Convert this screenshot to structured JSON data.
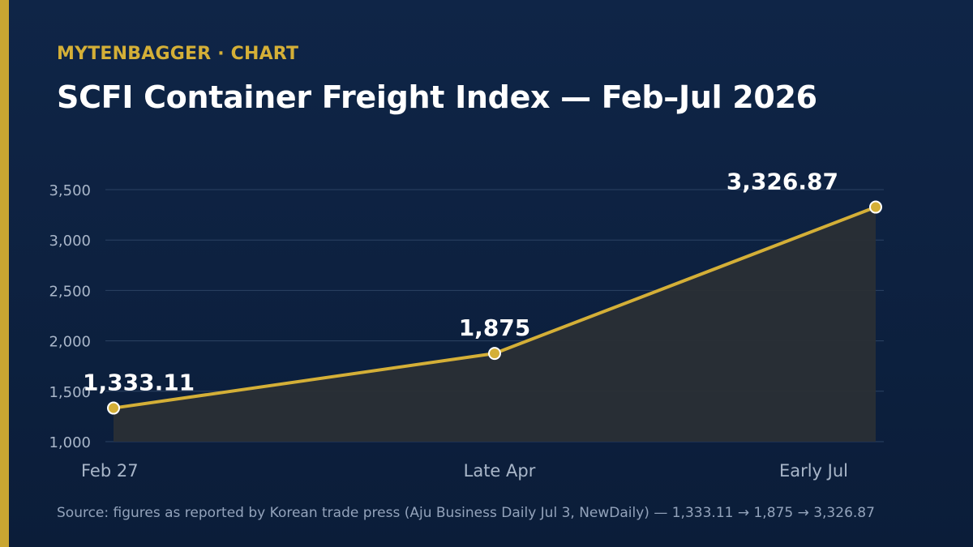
{
  "header": {
    "eyebrow": "MYTENBAGGER · CHART",
    "title": "SCFI Container Freight Index — Feb–Jul 2026"
  },
  "footer": {
    "source": "Source: figures as reported by Korean trade press (Aju Business Daily Jul 3, NewDaily) — 1,333.11 → 1,875 → 3,326.87"
  },
  "colors": {
    "background": "#0f2547",
    "accent": "#d4af37",
    "line": "#d4af37",
    "area": "#2a2f35",
    "grid": "#2c4263",
    "tick_text": "#a9b6c9",
    "label_text": "#ffffff"
  },
  "chart_data": {
    "type": "area",
    "title": "SCFI Container Freight Index — Feb–Jul 2026",
    "xlabel": "",
    "ylabel": "",
    "categories": [
      "Feb 27",
      "Late Apr",
      "Early Jul"
    ],
    "x_positions": [
      0,
      0.5,
      1
    ],
    "series": [
      {
        "values": [
          1333.11,
          1875,
          3326.87
        ]
      }
    ],
    "data_labels": [
      "1,333.11",
      "1,875",
      "3,326.87"
    ],
    "ylim": [
      1000,
      3500
    ],
    "yticks": [
      1000,
      1500,
      2000,
      2500,
      3000,
      3500
    ],
    "ytick_labels": [
      "1,000",
      "1,500",
      "2,000",
      "2,500",
      "3,000",
      "3,500"
    ],
    "grid": true,
    "legend": "none"
  }
}
